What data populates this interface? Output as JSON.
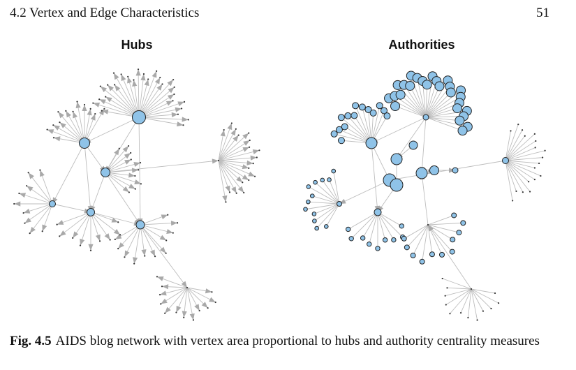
{
  "header": {
    "section": "4.2  Vertex and Edge Characteristics",
    "page_number": "51"
  },
  "panels": {
    "hubs_title": "Hubs",
    "authorities_title": "Authorities"
  },
  "caption": {
    "label": "Fig. 4.5",
    "text": "AIDS blog network with vertex area proportional to hubs and authority centrality measures"
  },
  "colors": {
    "vertex_fill": "#8fc3e8",
    "vertex_stroke": "#222222",
    "edge": "#bdbdbd"
  }
}
